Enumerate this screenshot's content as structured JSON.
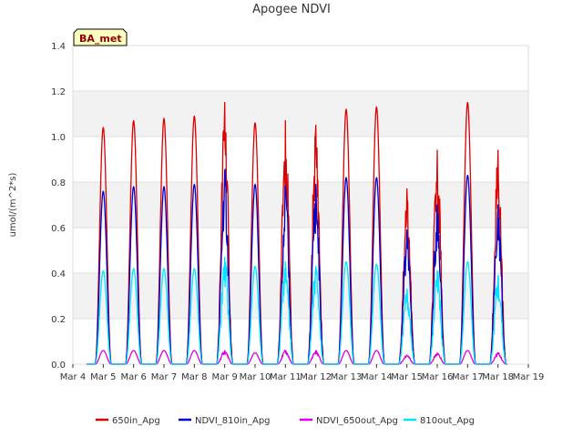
{
  "chart_data": {
    "type": "line",
    "title": "Apogee NDVI",
    "xlabel": "",
    "ylabel": "umol/(m^2*s)",
    "ylim": [
      0,
      1.4
    ],
    "y_ticks": [
      "0.0",
      "0.2",
      "0.4",
      "0.6",
      "0.8",
      "1.0",
      "1.2",
      "1.4"
    ],
    "x_ticks": [
      "Mar 4",
      "Mar 5",
      "Mar 6",
      "Mar 7",
      "Mar 8",
      "Mar 9",
      "Mar 10",
      "Mar 11",
      "Mar 12",
      "Mar 13",
      "Mar 14",
      "Mar 15",
      "Mar 16",
      "Mar 17",
      "Mar 18",
      "Mar 19"
    ],
    "x_range_days": [
      4,
      19
    ],
    "grid": true,
    "legend_position": "bottom",
    "badge": "BA_met",
    "series": [
      {
        "name": "650in_Apg",
        "color": "#dd0000",
        "daily_peaks": [
          1.04,
          1.07,
          1.08,
          1.09,
          1.15,
          1.06,
          1.07,
          1.05,
          1.12,
          1.13,
          0.77,
          0.94,
          1.15,
          0.94
        ]
      },
      {
        "name": "NDVI_810in_Apg",
        "color": "#0000cc",
        "daily_peaks": [
          0.76,
          0.78,
          0.78,
          0.79,
          0.85,
          0.79,
          0.78,
          0.79,
          0.82,
          0.82,
          0.59,
          0.7,
          0.83,
          0.7
        ]
      },
      {
        "name": "NDVI_650out_Apg",
        "color": "#dd00dd",
        "daily_peaks": [
          0.06,
          0.06,
          0.06,
          0.06,
          0.06,
          0.05,
          0.06,
          0.06,
          0.06,
          0.06,
          0.04,
          0.05,
          0.06,
          0.05
        ]
      },
      {
        "name": "810out_Apg",
        "color": "#00e5ff",
        "daily_peaks": [
          0.41,
          0.42,
          0.42,
          0.42,
          0.47,
          0.43,
          0.45,
          0.43,
          0.45,
          0.44,
          0.33,
          0.41,
          0.45,
          0.39
        ]
      }
    ],
    "day_centers": [
      5.0,
      6.0,
      7.0,
      8.0,
      9.0,
      10.0,
      11.0,
      12.0,
      13.0,
      14.0,
      15.0,
      16.0,
      17.0,
      18.0
    ]
  }
}
